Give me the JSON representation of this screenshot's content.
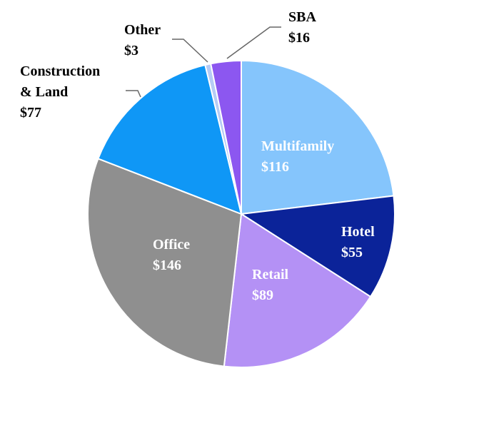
{
  "chart_data": {
    "type": "pie",
    "title": "",
    "slices": [
      {
        "name": "Multifamily",
        "value": 116,
        "value_label": "$116",
        "color": "#85c5fc",
        "label_color": "#ffffff",
        "label_inside": true
      },
      {
        "name": "Hotel",
        "value": 55,
        "value_label": "$55",
        "color": "#0b2399",
        "label_color": "#ffffff",
        "label_inside": true
      },
      {
        "name": "Retail",
        "value": 89,
        "value_label": "$89",
        "color": "#b491f5",
        "label_color": "#ffffff",
        "label_inside": true
      },
      {
        "name": "Office",
        "value": 146,
        "value_label": "$146",
        "color": "#8f8f8f",
        "label_color": "#ffffff",
        "label_inside": true
      },
      {
        "name": "Construction & Land",
        "name_lines": [
          "Construction",
          "& Land"
        ],
        "value": 77,
        "value_label": "$77",
        "color": "#0f97f6",
        "label_color": "#000000",
        "label_inside": false
      },
      {
        "name": "Other",
        "value": 3,
        "value_label": "$3",
        "color": "#b6cbf5",
        "label_color": "#000000",
        "label_inside": false
      },
      {
        "name": "SBA",
        "value": 16,
        "value_label": "$16",
        "color": "#8c57f0",
        "label_color": "#000000",
        "label_inside": false
      }
    ]
  }
}
